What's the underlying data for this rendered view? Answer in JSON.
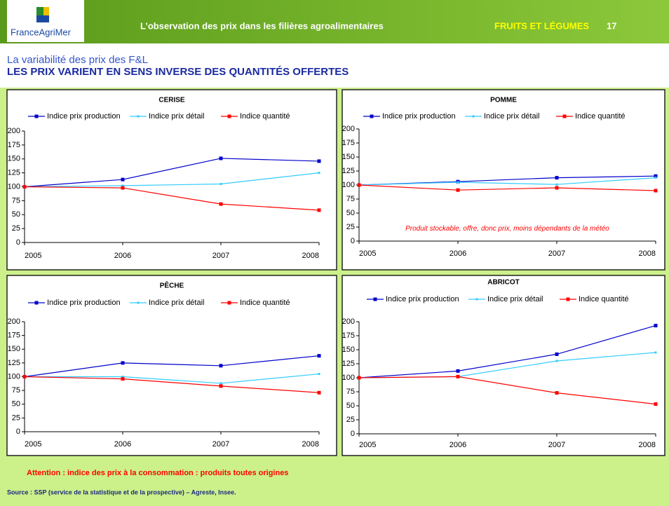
{
  "header": {
    "logo": "FranceAgriMer",
    "title": "L’observation des prix dans les filières agroalimentaires",
    "section": "FRUITS ET LÉGUMES",
    "page": "17"
  },
  "subtitle": {
    "line1": "La variabilité des prix des F&L",
    "line2": "LES PRIX VARIENT EN SENS INVERSE DES QUANTITÉS OFFERTES"
  },
  "chart_data": [
    {
      "type": "line",
      "title": "CERISE",
      "categories": [
        "2005",
        "2006",
        "2007",
        "2008"
      ],
      "ylim": [
        0,
        200
      ],
      "yticks": [
        0,
        25,
        50,
        75,
        100,
        125,
        150,
        175,
        200
      ],
      "series": [
        {
          "name": "Indice prix production",
          "color": "#0000cc",
          "values": [
            100,
            113,
            151,
            146
          ]
        },
        {
          "name": "Indice prix détail",
          "color": "#33ccff",
          "values": [
            100,
            102,
            105,
            125
          ]
        },
        {
          "name": "Indice quantité",
          "color": "#ff0000",
          "values": [
            100,
            98,
            69,
            58
          ]
        }
      ]
    },
    {
      "type": "line",
      "title": "POMME",
      "categories": [
        "2005",
        "2006",
        "2007",
        "2008"
      ],
      "ylim": [
        0,
        200
      ],
      "yticks": [
        0,
        25,
        50,
        75,
        100,
        125,
        150,
        175,
        200
      ],
      "annotation": "Produit stockable, offre, donc prix, moins dépendants de la météo",
      "series": [
        {
          "name": "Indice prix production",
          "color": "#0000cc",
          "values": [
            100,
            106,
            113,
            116
          ]
        },
        {
          "name": "Indice prix détail",
          "color": "#33ccff",
          "values": [
            100,
            105,
            101,
            113
          ]
        },
        {
          "name": "Indice quantité",
          "color": "#ff0000",
          "values": [
            100,
            91,
            95,
            90
          ]
        }
      ]
    },
    {
      "type": "line",
      "title": "PÊCHE",
      "categories": [
        "2005",
        "2006",
        "2007",
        "2008"
      ],
      "ylim": [
        0,
        200
      ],
      "yticks": [
        0,
        25,
        50,
        75,
        100,
        125,
        150,
        175,
        200
      ],
      "series": [
        {
          "name": "Indice prix production",
          "color": "#0000cc",
          "values": [
            100,
            125,
            120,
            138
          ]
        },
        {
          "name": "Indice prix détail",
          "color": "#33ccff",
          "values": [
            100,
            100,
            88,
            105
          ]
        },
        {
          "name": "Indice quantité",
          "color": "#ff0000",
          "values": [
            100,
            96,
            83,
            71
          ]
        }
      ]
    },
    {
      "type": "line",
      "title": "ABRICOT",
      "categories": [
        "2005",
        "2006",
        "2007",
        "2008"
      ],
      "ylim": [
        0,
        200
      ],
      "yticks": [
        0,
        25,
        50,
        75,
        100,
        125,
        150,
        175,
        200
      ],
      "series": [
        {
          "name": "Indice prix production",
          "color": "#0000cc",
          "values": [
            100,
            112,
            142,
            193
          ]
        },
        {
          "name": "Indice prix détail",
          "color": "#33ccff",
          "values": [
            100,
            102,
            130,
            145
          ]
        },
        {
          "name": "Indice quantité",
          "color": "#ff0000",
          "values": [
            100,
            102,
            73,
            53
          ]
        }
      ]
    }
  ],
  "footer": {
    "note": "Attention : indice des prix à la consommation : produits toutes origines",
    "source": "Source : SSP (service de la statistique et de la prospective) – Agreste, Insee."
  }
}
